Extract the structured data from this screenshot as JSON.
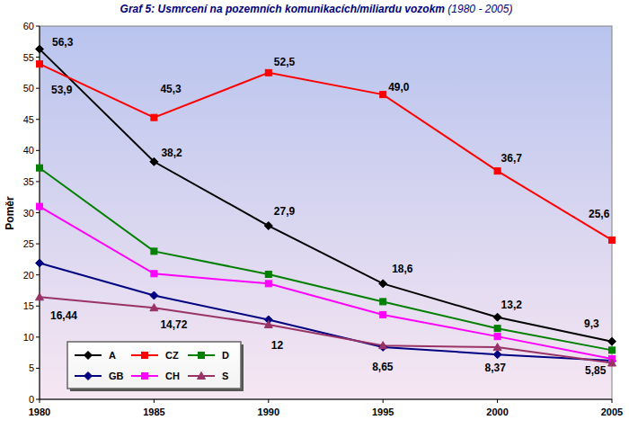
{
  "chart_data": {
    "type": "line",
    "title": "Graf 5: Usmrcení na pozemních komunikacích/miliardu vozokm",
    "subtitle": "(1980 - 2005)",
    "y_label": "Poměr",
    "x": [
      1980,
      1985,
      1990,
      1995,
      2000,
      2005
    ],
    "xlim": [
      1980,
      2005
    ],
    "xticks": [
      1980,
      1985,
      1990,
      1995,
      2000,
      2005
    ],
    "ylim": [
      0,
      60
    ],
    "yticks": [
      0,
      5,
      10,
      15,
      20,
      25,
      30,
      35,
      40,
      45,
      50,
      55,
      60
    ],
    "grid": false,
    "legend": "lower left",
    "series": [
      {
        "name": "A",
        "color": "#000000",
        "marker": "diamond",
        "data_labels": true,
        "values": [
          56.3,
          38.2,
          27.9,
          18.6,
          13.2,
          9.3
        ],
        "value_labels": [
          "56,3",
          "38,2",
          "27,9",
          "18,6",
          "13,2",
          "9,3"
        ]
      },
      {
        "name": "CZ",
        "color": "#ff0000",
        "marker": "square",
        "data_labels": true,
        "values": [
          53.9,
          45.3,
          52.5,
          49.0,
          36.7,
          25.6
        ],
        "value_labels": [
          "53,9",
          "45,3",
          "52,5",
          "49,0",
          "36,7",
          "25,6"
        ]
      },
      {
        "name": "D",
        "color": "#008000",
        "marker": "square",
        "data_labels": false,
        "values": [
          37.2,
          23.8,
          20.1,
          15.7,
          11.4,
          7.9
        ]
      },
      {
        "name": "GB",
        "color": "#000080",
        "marker": "diamond",
        "data_labels": false,
        "values": [
          21.9,
          16.7,
          12.8,
          8.4,
          7.2,
          6.2
        ]
      },
      {
        "name": "CH",
        "color": "#ff00ff",
        "marker": "square",
        "data_labels": false,
        "values": [
          31.0,
          20.2,
          18.6,
          13.6,
          10.1,
          6.5
        ]
      },
      {
        "name": "S",
        "color": "#993366",
        "marker": "triangle",
        "data_labels": true,
        "values": [
          16.44,
          14.72,
          12,
          8.65,
          8.37,
          5.85
        ],
        "value_labels": [
          "16,44",
          "14,72",
          "12",
          "8,65",
          "8,37",
          "5,85"
        ]
      }
    ]
  }
}
